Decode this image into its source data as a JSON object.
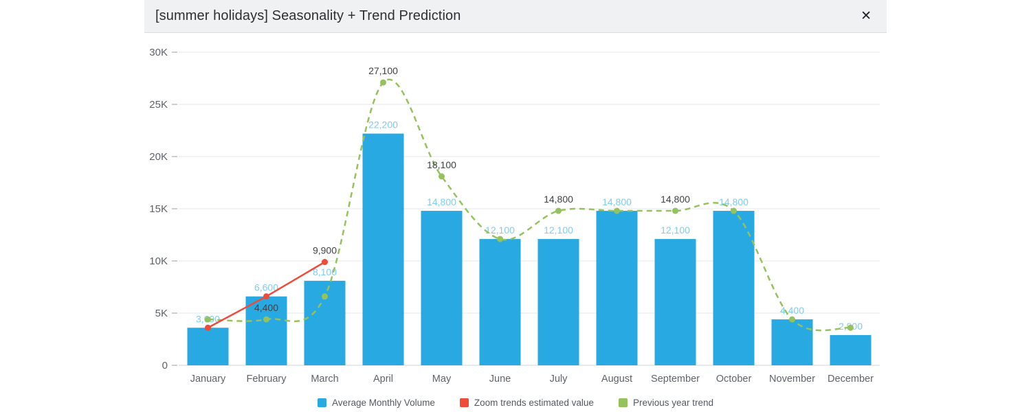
{
  "modal": {
    "title": "[summer holidays] Seasonality + Trend Prediction",
    "close_label": "✕"
  },
  "chart_data": {
    "type": "bar",
    "title": "[summer holidays] Seasonality + Trend Prediction",
    "categories": [
      "January",
      "February",
      "March",
      "April",
      "May",
      "June",
      "July",
      "August",
      "September",
      "October",
      "November",
      "December"
    ],
    "ylim": [
      0,
      30000
    ],
    "grid": true,
    "legend_position": "bottom",
    "yticks": [
      {
        "value": 0,
        "label": "0"
      },
      {
        "value": 5000,
        "label": "5K"
      },
      {
        "value": 10000,
        "label": "10K"
      },
      {
        "value": 15000,
        "label": "15K"
      },
      {
        "value": 20000,
        "label": "20K"
      },
      {
        "value": 25000,
        "label": "25K"
      },
      {
        "value": 30000,
        "label": "30K"
      }
    ],
    "axis_label_color": "#5f6368",
    "point_label_color": "#3f4245",
    "series": [
      {
        "name": "Average Monthly Volume",
        "type": "bar",
        "color": "#29A9E2",
        "label_color": "#7FCCF0",
        "values": [
          3600,
          6600,
          8100,
          22200,
          14800,
          12100,
          12100,
          14800,
          12100,
          14800,
          4400,
          2900
        ],
        "labels": [
          "3,600",
          "6,600",
          "8,100",
          "22,200",
          "14,800",
          "12,100",
          "12,100",
          "14,800",
          "12,100",
          "14,800",
          "4,400",
          "2,900"
        ]
      },
      {
        "name": "Zoom trends estimated value",
        "type": "line",
        "style": "solid",
        "color": "#EE4B39",
        "values": [
          3600,
          6600,
          9900,
          null,
          null,
          null,
          null,
          null,
          null,
          null,
          null,
          null
        ],
        "point_labels": [
          null,
          null,
          "9,900",
          null,
          null,
          null,
          null,
          null,
          null,
          null,
          null,
          null
        ]
      },
      {
        "name": "Previous year trend",
        "type": "line",
        "style": "dashed",
        "color": "#94C25C",
        "values": [
          4400,
          4400,
          6600,
          27100,
          18100,
          12100,
          14800,
          14800,
          14800,
          14800,
          4400,
          3600
        ],
        "point_labels": [
          null,
          "4,400",
          null,
          "27,100",
          "18,100",
          null,
          "14,800",
          null,
          "14,800",
          null,
          null,
          null
        ]
      }
    ],
    "legend": [
      "Average Monthly Volume",
      "Zoom trends estimated value",
      "Previous year trend"
    ]
  }
}
